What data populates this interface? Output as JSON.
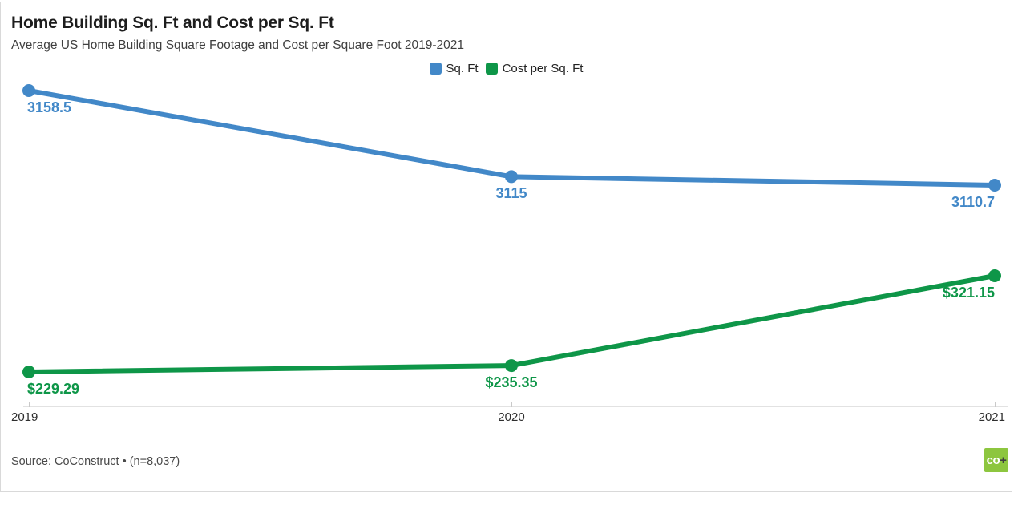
{
  "header": {
    "title": "Home Building Sq. Ft and Cost per Sq. Ft",
    "subtitle": "Average US Home Building Square Footage and Cost per Square Foot 2019-2021"
  },
  "chart_data": {
    "type": "line",
    "title": "Home Building Sq. Ft and Cost per Sq. Ft",
    "subtitle": "Average US Home Building Square Footage and Cost per Square Foot 2019-2021",
    "categories": [
      "2019",
      "2020",
      "2021"
    ],
    "series": [
      {
        "name": "Sq. Ft",
        "color": "#4288c8",
        "values": [
          3158.5,
          3115,
          3110.7
        ],
        "labels": [
          "3158.5",
          "3115",
          "3110.7"
        ]
      },
      {
        "name": "Cost per Sq. Ft",
        "color": "#0e9648",
        "values": [
          229.29,
          235.35,
          321.15
        ],
        "labels": [
          "$229.29",
          "$235.35",
          "$321.15"
        ]
      }
    ],
    "xlabel": "",
    "ylabel": "",
    "grid": false,
    "legend_position": "top-center"
  },
  "footer": {
    "source": "Source: CoConstruct • (n=8,037)",
    "logo": {
      "co": "co",
      "plus": "+",
      "bg": "#8dc63f"
    }
  }
}
